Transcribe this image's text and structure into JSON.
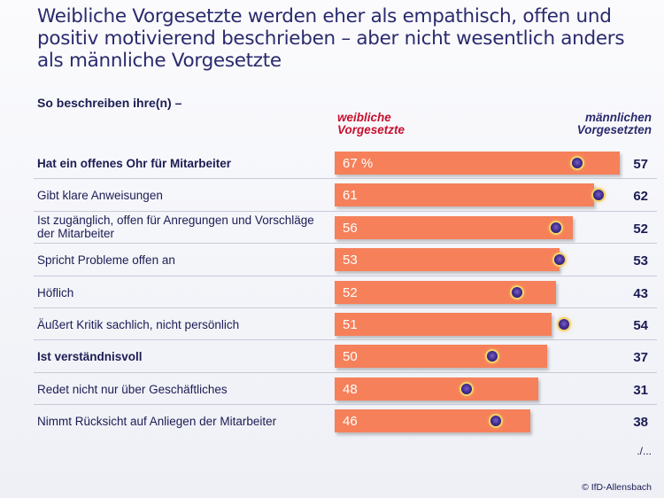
{
  "title": "Weibliche Vorgesetzte werden eher als empathisch, offen und positiv motivierend beschrieben – aber nicht wesentlich anders als männliche Vorgesetzte",
  "subtitle": "So beschreiben ihre(n) –",
  "colors": {
    "female_bar": "#f5805a",
    "female_header": "#c8102e",
    "male_marker": "#3a2a8a",
    "text": "#1c1c54"
  },
  "chart_data": {
    "type": "bar",
    "categories": [
      "Hat ein offenes Ohr für Mitarbeiter",
      "Gibt klare Anweisungen",
      "Ist zugänglich, offen für Anregungen und Vorschläge der Mitarbeiter",
      "Spricht Probleme offen an",
      "Höflich",
      "Äußert Kritik sachlich, nicht persönlich",
      "Ist verständnisvoll",
      "Redet nicht nur über Geschäftliches",
      "Nimmt Rücksicht auf Anliegen der Mitarbeiter"
    ],
    "bold": [
      true,
      false,
      false,
      false,
      false,
      false,
      true,
      false,
      false
    ],
    "series": [
      {
        "name": "weibliche Vorgesetzte",
        "values": [
          67,
          61,
          56,
          53,
          52,
          51,
          50,
          48,
          46
        ],
        "labels": [
          "67 %",
          "61",
          "56",
          "53",
          "52",
          "51",
          "50",
          "48",
          "46"
        ]
      },
      {
        "name": "männlichen Vorgesetzten",
        "values": [
          57,
          62,
          52,
          53,
          43,
          54,
          37,
          31,
          38
        ],
        "labels": [
          "57",
          "62",
          "52",
          "53",
          "43",
          "54",
          "37",
          "31",
          "38"
        ]
      }
    ],
    "xlim": [
      0,
      100
    ]
  },
  "continuation": "./...",
  "copyright": "© IfD-Allensbach"
}
